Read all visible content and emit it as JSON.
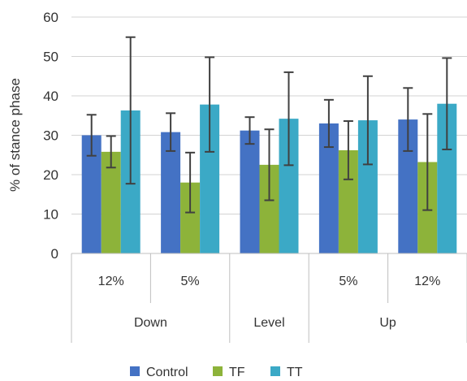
{
  "chart_data": {
    "type": "bar",
    "ylabel": "% of stance phase",
    "ylim": [
      0,
      60
    ],
    "yticks": [
      0,
      10,
      20,
      30,
      40,
      50,
      60
    ],
    "grid": true,
    "legend_position": "bottom",
    "categories": [
      "12%",
      "5%",
      "",
      "5%",
      "12%"
    ],
    "groups": [
      {
        "label": "Down",
        "span": [
          0,
          1
        ]
      },
      {
        "label": "Level",
        "span": [
          2,
          2
        ]
      },
      {
        "label": "Up",
        "span": [
          3,
          4
        ]
      }
    ],
    "series": [
      {
        "name": "Control",
        "color": "#4472C4",
        "values": [
          30.0,
          30.8,
          31.2,
          33.0,
          34.0
        ],
        "errors": [
          5.2,
          4.8,
          3.4,
          6.0,
          8.0
        ]
      },
      {
        "name": "TF",
        "color": "#8DB33A",
        "values": [
          25.8,
          18.0,
          22.5,
          26.2,
          23.2
        ],
        "errors": [
          4.0,
          7.6,
          9.0,
          7.4,
          12.2
        ]
      },
      {
        "name": "TT",
        "color": "#3BA9C6",
        "values": [
          36.3,
          37.8,
          34.2,
          33.8,
          38.0
        ],
        "errors": [
          18.6,
          12.0,
          11.8,
          11.2,
          11.6
        ]
      }
    ]
  }
}
